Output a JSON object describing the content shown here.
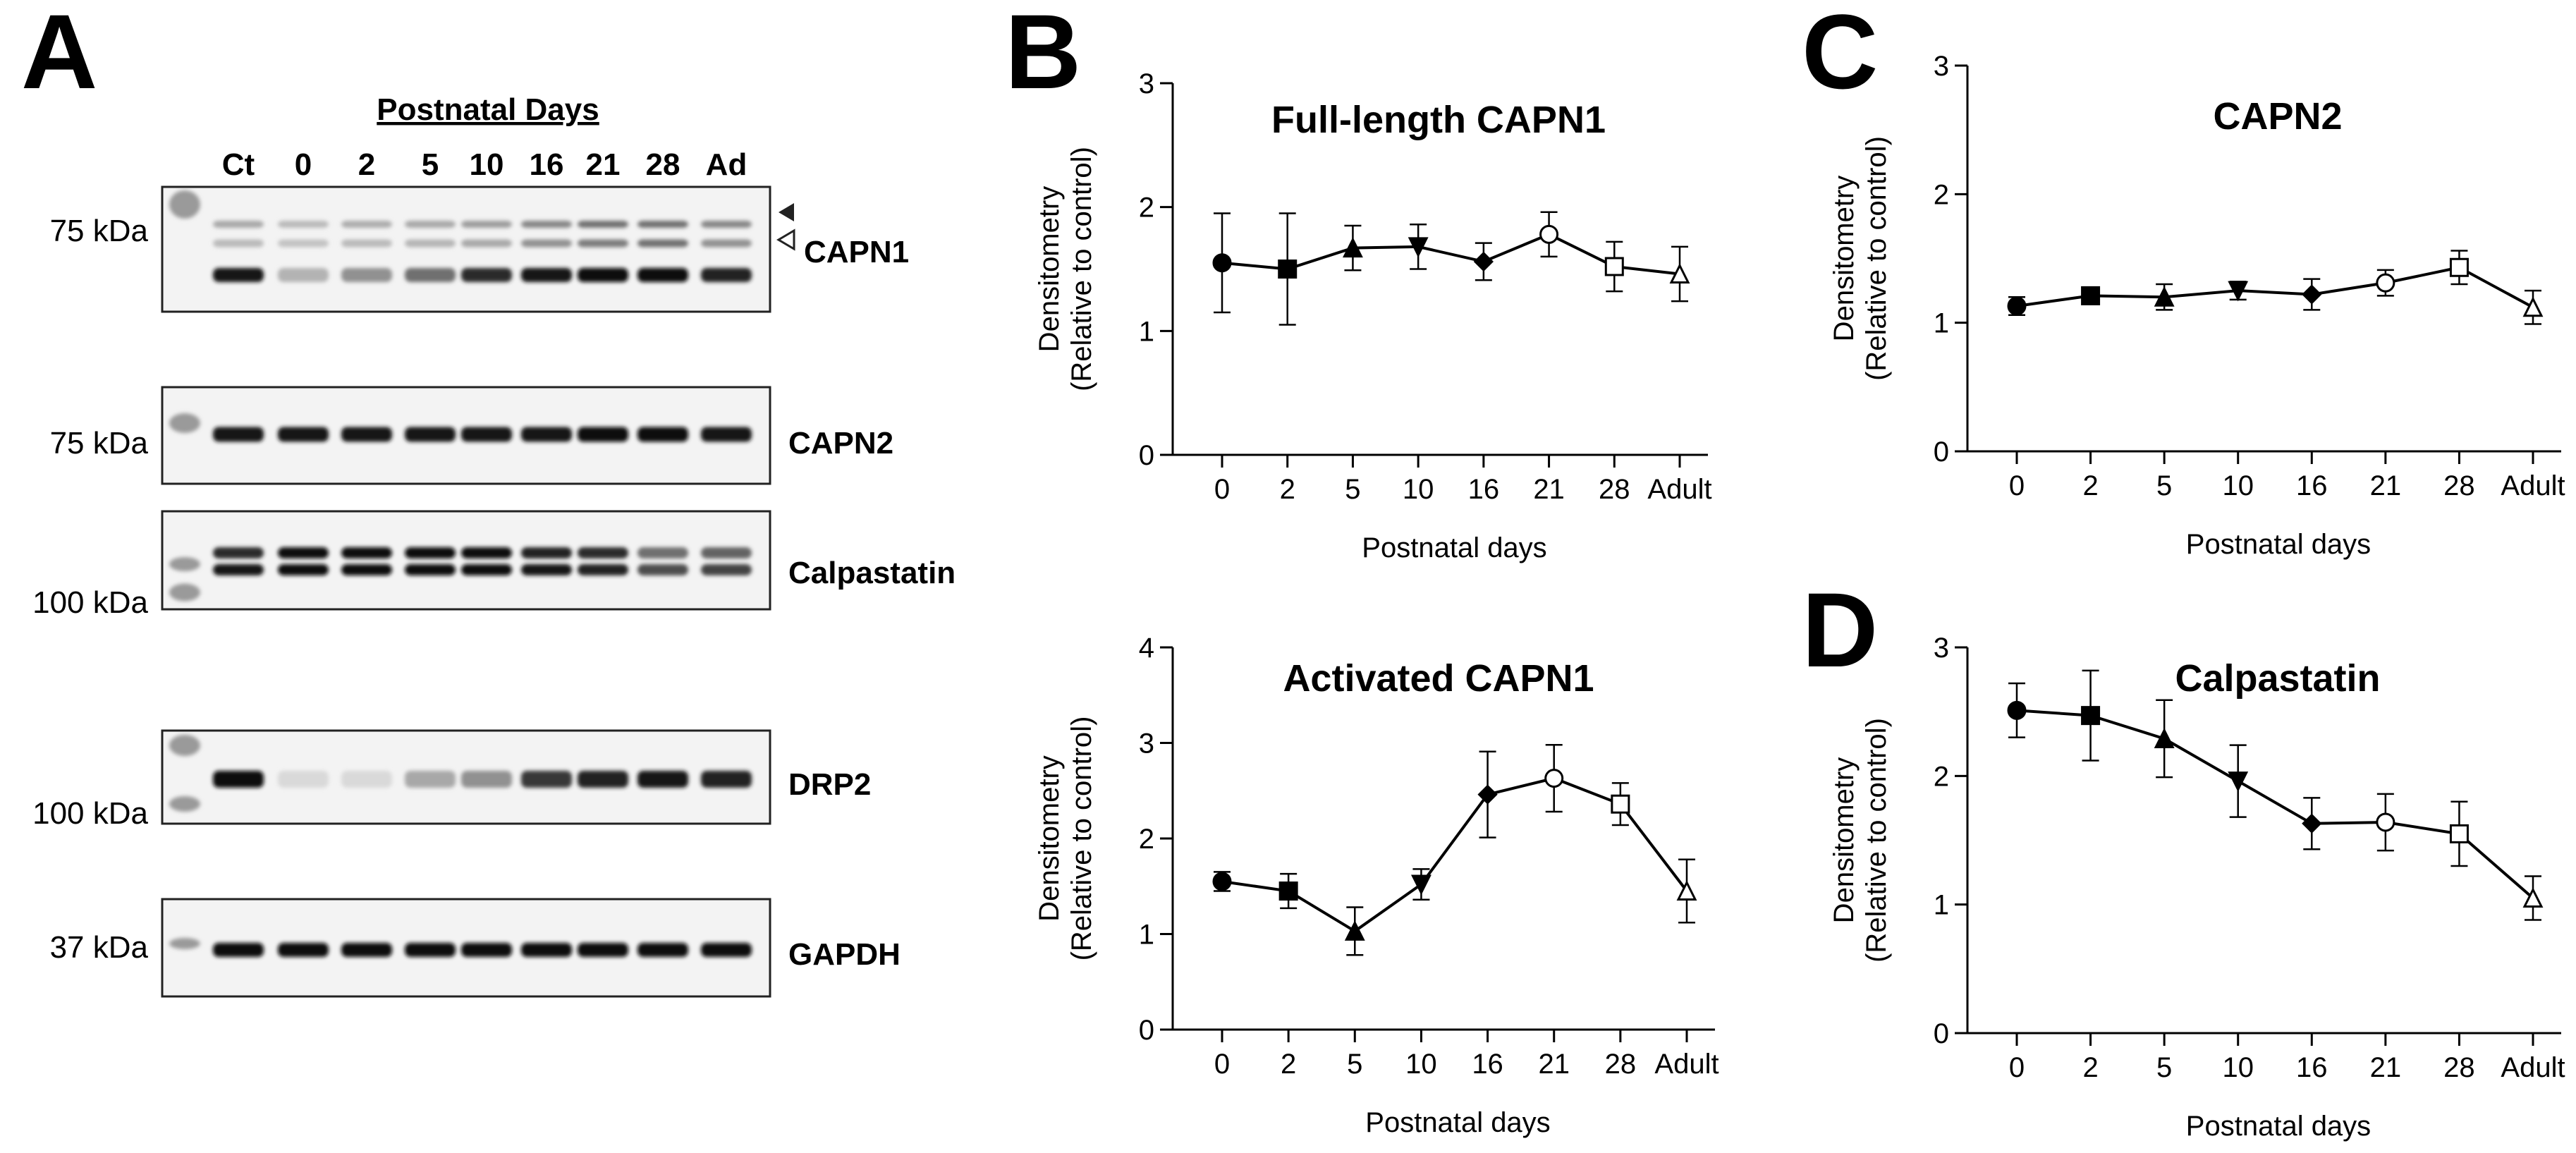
{
  "panel_labels": {
    "a": "A",
    "b": "B",
    "c": "C",
    "d": "D"
  },
  "blot": {
    "header": "Postnatal Days",
    "lanes": [
      "Ct",
      "0",
      "2",
      "5",
      "10",
      "16",
      "21",
      "28",
      "Ad"
    ],
    "rows": [
      {
        "protein": "CAPN1",
        "marker": "75 kDa",
        "bands": [
          {
            "intensity": [
              0.3,
              0.22,
              0.28,
              0.3,
              0.35,
              0.45,
              0.55,
              0.55,
              0.45
            ]
          },
          {
            "intensity": [
              0.22,
              0.18,
              0.22,
              0.24,
              0.3,
              0.4,
              0.5,
              0.55,
              0.4
            ]
          },
          {
            "intensity": [
              0.95,
              0.25,
              0.4,
              0.55,
              0.85,
              0.95,
              1.0,
              1.0,
              0.9
            ]
          }
        ]
      },
      {
        "protein": "CAPN2",
        "marker": "75 kDa",
        "bands": [
          {
            "intensity": [
              0.95,
              0.95,
              0.95,
              0.95,
              0.95,
              0.95,
              1.0,
              1.0,
              0.95
            ]
          }
        ]
      },
      {
        "protein": "Calpastatin",
        "marker": "100 kDa",
        "bands": [
          {
            "intensity": [
              0.85,
              1.0,
              1.0,
              1.0,
              1.0,
              0.9,
              0.85,
              0.55,
              0.6
            ]
          },
          {
            "intensity": [
              0.95,
              1.0,
              1.0,
              1.0,
              1.0,
              0.95,
              0.9,
              0.7,
              0.75
            ]
          }
        ]
      },
      {
        "protein": "DRP2",
        "marker": "100 kDa",
        "bands": [
          {
            "intensity": [
              1.0,
              0.08,
              0.08,
              0.3,
              0.4,
              0.8,
              0.9,
              0.95,
              0.9
            ]
          }
        ]
      },
      {
        "protein": "GAPDH",
        "marker": "37 kDa",
        "bands": [
          {
            "intensity": [
              1.0,
              1.0,
              1.0,
              1.0,
              1.0,
              1.0,
              1.0,
              1.0,
              1.0
            ]
          }
        ]
      }
    ]
  },
  "chart_data": [
    {
      "id": "fl",
      "panel": "B",
      "type": "line",
      "title": "Full-length CAPN1",
      "categories": [
        "0",
        "2",
        "5",
        "10",
        "16",
        "21",
        "28",
        "Adult"
      ],
      "values": [
        1.55,
        1.5,
        1.67,
        1.68,
        1.56,
        1.78,
        1.52,
        1.46
      ],
      "errors": [
        0.4,
        0.45,
        0.18,
        0.18,
        0.15,
        0.18,
        0.2,
        0.22
      ],
      "markers": [
        "circle-filled",
        "square-filled",
        "triangle-filled",
        "triangle-down-filled",
        "diamond-filled",
        "circle-open",
        "square-open",
        "triangle-open"
      ],
      "xlabel": "Postnatal days",
      "ylabel": [
        "Densitometry",
        "(Relative to control)"
      ],
      "ylim": [
        0,
        3
      ],
      "yticks": [
        "0",
        "1",
        "2",
        "3"
      ]
    },
    {
      "id": "act",
      "panel": "B",
      "type": "line",
      "title": "Activated CAPN1",
      "categories": [
        "0",
        "2",
        "5",
        "10",
        "16",
        "21",
        "28",
        "Adult"
      ],
      "values": [
        1.55,
        1.45,
        1.03,
        1.52,
        2.46,
        2.63,
        2.36,
        1.45
      ],
      "errors": [
        0.1,
        0.18,
        0.25,
        0.16,
        0.45,
        0.35,
        0.22,
        0.33
      ],
      "markers": [
        "circle-filled",
        "square-filled",
        "triangle-filled",
        "triangle-down-filled",
        "diamond-filled",
        "circle-open",
        "square-open",
        "triangle-open"
      ],
      "xlabel": "Postnatal days",
      "ylabel": [
        "Densitometry",
        "(Relative to control)"
      ],
      "ylim": [
        0,
        4
      ],
      "yticks": [
        "0",
        "1",
        "2",
        "3",
        "4"
      ]
    },
    {
      "id": "capn2",
      "panel": "C",
      "type": "line",
      "title": "CAPN2",
      "categories": [
        "0",
        "2",
        "5",
        "10",
        "16",
        "21",
        "28",
        "Adult"
      ],
      "values": [
        1.13,
        1.21,
        1.2,
        1.25,
        1.22,
        1.31,
        1.43,
        1.12
      ],
      "errors": [
        0.07,
        0.04,
        0.1,
        0.07,
        0.12,
        0.1,
        0.13,
        0.13
      ],
      "markers": [
        "circle-filled",
        "square-filled",
        "triangle-filled",
        "triangle-down-filled",
        "diamond-filled",
        "circle-open",
        "square-open",
        "triangle-open"
      ],
      "xlabel": "Postnatal days",
      "ylabel": [
        "Densitometry",
        "(Relative to control)"
      ],
      "ylim": [
        0,
        3
      ],
      "yticks": [
        "0",
        "1",
        "2",
        "3"
      ]
    },
    {
      "id": "calp",
      "panel": "D",
      "type": "line",
      "title": "Calpastatin",
      "categories": [
        "0",
        "2",
        "5",
        "10",
        "16",
        "21",
        "28",
        "Adult"
      ],
      "values": [
        2.51,
        2.47,
        2.29,
        1.96,
        1.63,
        1.64,
        1.55,
        1.05
      ],
      "errors": [
        0.21,
        0.35,
        0.3,
        0.28,
        0.2,
        0.22,
        0.25,
        0.17
      ],
      "markers": [
        "circle-filled",
        "square-filled",
        "triangle-filled",
        "triangle-down-filled",
        "diamond-filled",
        "circle-open",
        "square-open",
        "triangle-open"
      ],
      "xlabel": "Postnatal days",
      "ylabel": [
        "Densitometry",
        "(Relative to control)"
      ],
      "ylim": [
        0,
        3
      ],
      "yticks": [
        "0",
        "1",
        "2",
        "3"
      ]
    }
  ]
}
